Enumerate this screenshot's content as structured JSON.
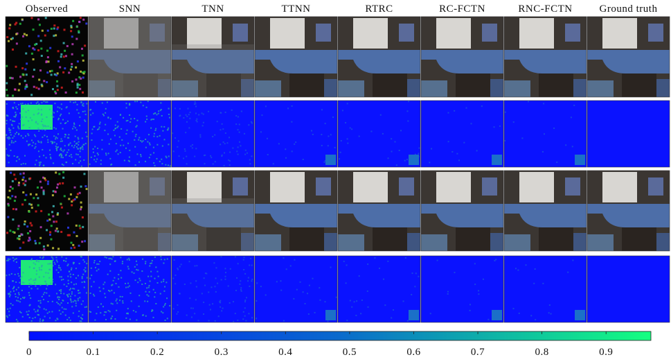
{
  "columns": [
    "Observed",
    "SNN",
    "TNN",
    "TTNN",
    "RTRC",
    "RC-FCTN",
    "RNC-FCTN",
    "Ground truth"
  ],
  "colorbar": {
    "lim": [
      0,
      0.97
    ],
    "ticks": [
      0,
      0.1,
      0.2,
      0.3,
      0.4,
      0.5,
      0.6,
      0.7,
      0.8,
      0.9
    ]
  }
}
